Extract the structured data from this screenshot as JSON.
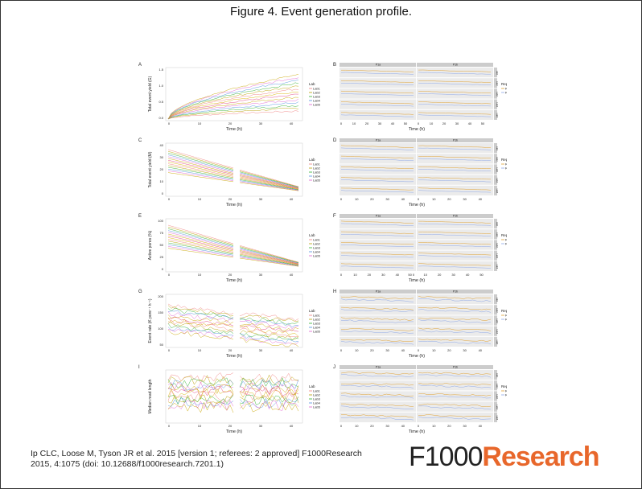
{
  "title": "Figure 4. Event generation profile.",
  "caption": "Ip CLC, Loose M, Tyson JR et al. 2015 [version 1; referees: 2 approved] F1000Research 2015, 4:1075 (doi: 10.12688/f1000research.7201.1)",
  "logo": {
    "prefix": "F1000",
    "suffix": "Research"
  },
  "colors": {
    "accent": "#e8672b",
    "lab1": "#f08080",
    "lab2": "#b8a000",
    "lab3": "#30b030",
    "lab4": "#5090e0",
    "lab5": "#e060d0"
  },
  "panels": {
    "A": {
      "letter": "A",
      "ylabel": "Total event yield (G)",
      "xlabel": "Time (h)",
      "yticks": [
        "1.5",
        "1.0",
        "0.5",
        "0.0"
      ],
      "xticks": [
        "0",
        "10",
        "20",
        "30",
        "40"
      ]
    },
    "B": {
      "letter": "B",
      "strip1": "P1a",
      "strip2": "P1b",
      "xlabel": "Time (h)",
      "xticks": [
        "0",
        "10",
        "20",
        "30",
        "40",
        "50",
        "0",
        "10",
        "20",
        "30",
        "40",
        "50"
      ]
    },
    "C": {
      "letter": "C",
      "ylabel": "Total event yield (M)",
      "xlabel": "Time (h)",
      "yticks": [
        "40",
        "30",
        "20",
        "10",
        "0"
      ],
      "xticks": [
        "0",
        "10",
        "20",
        "30",
        "40"
      ]
    },
    "D": {
      "letter": "D",
      "strip1": "P1a",
      "strip2": "P1b",
      "xlabel": "Time (h)",
      "xticks": [
        "0",
        "10",
        "20",
        "30",
        "40",
        "0",
        "10",
        "20",
        "30",
        "40"
      ]
    },
    "E": {
      "letter": "E",
      "ylabel": "Active pores (%)",
      "xlabel": "Time (h)",
      "yticks": [
        "100",
        "75",
        "50",
        "25",
        "0"
      ],
      "xticks": [
        "0",
        "10",
        "20",
        "30",
        "40"
      ]
    },
    "F": {
      "letter": "F",
      "strip1": "P1a",
      "strip2": "P1b",
      "xlabel": "Time (h)",
      "xticks": [
        "0",
        "10",
        "20",
        "30",
        "40",
        "50 0",
        "10",
        "20",
        "30",
        "40",
        "50"
      ]
    },
    "G": {
      "letter": "G",
      "ylabel": "Event rate (K pore⁻¹ h⁻¹)",
      "xlabel": "Time (h)",
      "yticks": [
        "200",
        "150",
        "100",
        "50"
      ],
      "xticks": [
        "0",
        "10",
        "20",
        "30",
        "40"
      ]
    },
    "H": {
      "letter": "H",
      "strip1": "P1a",
      "strip2": "P1b",
      "xlabel": "Time (h)",
      "xticks": [
        "0",
        "10",
        "20",
        "30",
        "40",
        "0",
        "10",
        "20",
        "30",
        "40"
      ]
    },
    "I": {
      "letter": "I",
      "ylabel": "Median read length",
      "xlabel": "Time (h)",
      "xticks": [
        "0",
        "10",
        "20",
        "30",
        "40"
      ]
    },
    "J": {
      "letter": "J",
      "strip1": "P1a",
      "strip2": "P1b",
      "xlabel": "Time (h)",
      "xticks": [
        "0",
        "10",
        "20",
        "30",
        "40",
        "0",
        "10",
        "20",
        "30",
        "40"
      ]
    }
  },
  "legend_lab": {
    "title": "Lab",
    "items": [
      "Lab1",
      "Lab2",
      "Lab3",
      "Lab4",
      "Lab5"
    ]
  },
  "legend_rep": {
    "title": "Replicate",
    "items": [
      "R1",
      "R2"
    ]
  },
  "facet_labels": [
    "Lab1",
    "Lab2",
    "Lab3",
    "Lab4",
    "Lab5"
  ]
}
